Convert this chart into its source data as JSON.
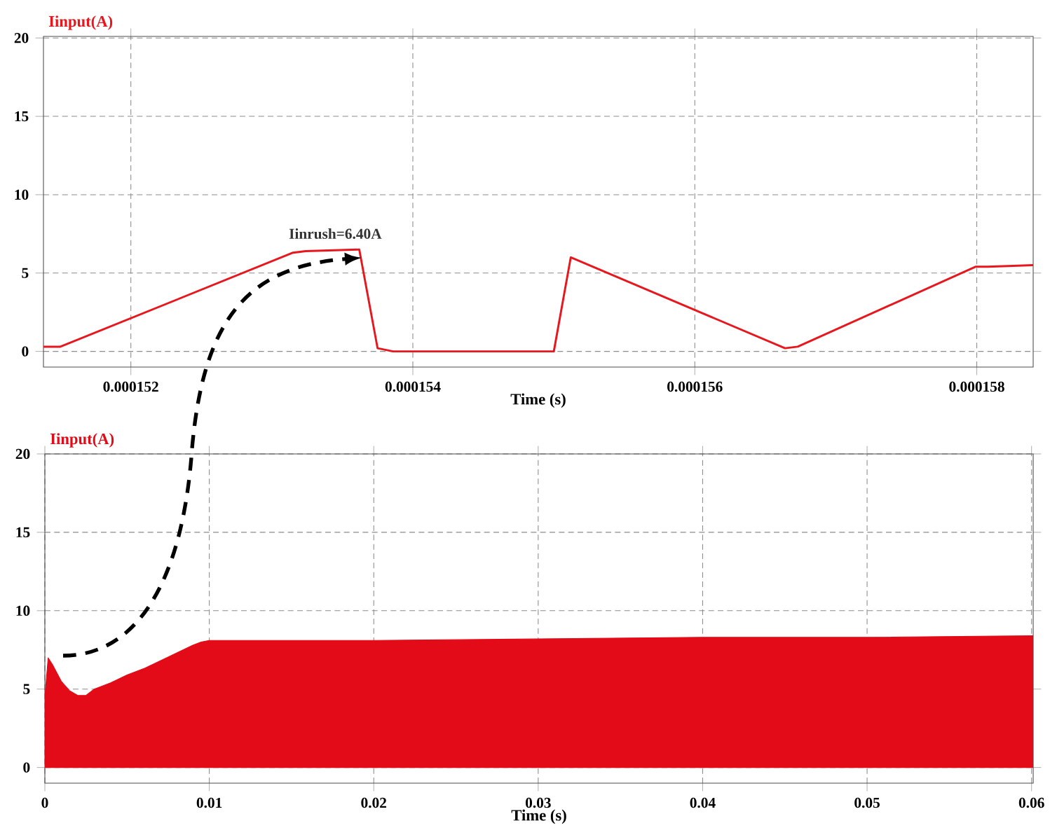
{
  "chart_data": [
    {
      "type": "line",
      "ylabel": "Iinput(A)",
      "xlabel": "Time (s)",
      "color": "#e8161d",
      "x": [
        0.00015138,
        0.0001515,
        0.00015315,
        0.00015324,
        0.00015362,
        0.00015375,
        0.00015386,
        0.000155,
        0.00015512,
        0.00015664,
        0.00015673,
        0.00015799,
        0.00015808,
        0.0001584
      ],
      "values": [
        0.3,
        0.3,
        6.3,
        6.4,
        6.5,
        0.2,
        0.0,
        0.0,
        6.0,
        0.2,
        0.3,
        5.4,
        5.4,
        5.5
      ],
      "xlim": [
        0.00015138,
        0.0001584
      ],
      "ylim": [
        -1,
        20.1
      ],
      "xticks": [
        0.000152,
        0.000154,
        0.000156,
        0.000158
      ],
      "yticks": [
        0,
        5,
        10,
        15,
        20
      ],
      "grid": true,
      "annotations": [
        {
          "text": "Iinrush=6.40A",
          "x": 0.00015345,
          "y": 6.4
        }
      ]
    },
    {
      "type": "area",
      "ylabel": "Iinput(A)",
      "xlabel": "Time (s)",
      "color": "#e30b17",
      "x": [
        0,
        0.0002,
        0.0005,
        0.001,
        0.0015,
        0.002,
        0.0025,
        0.003,
        0.004,
        0.005,
        0.006,
        0.007,
        0.008,
        0.009,
        0.0095,
        0.01,
        0.02,
        0.03,
        0.04,
        0.05,
        0.06,
        0.0601
      ],
      "values": [
        4.5,
        7.0,
        6.5,
        5.5,
        4.9,
        4.6,
        4.6,
        5.0,
        5.4,
        5.9,
        6.3,
        6.8,
        7.3,
        7.8,
        8.0,
        8.1,
        8.1,
        8.2,
        8.3,
        8.3,
        8.4,
        8.4
      ],
      "xlim": [
        0,
        0.0601
      ],
      "ylim": [
        -1,
        20
      ],
      "xticks": [
        0,
        0.01,
        0.02,
        0.03,
        0.04,
        0.05,
        0.06
      ],
      "yticks": [
        0,
        5,
        10,
        15,
        20
      ],
      "grid": true
    }
  ]
}
